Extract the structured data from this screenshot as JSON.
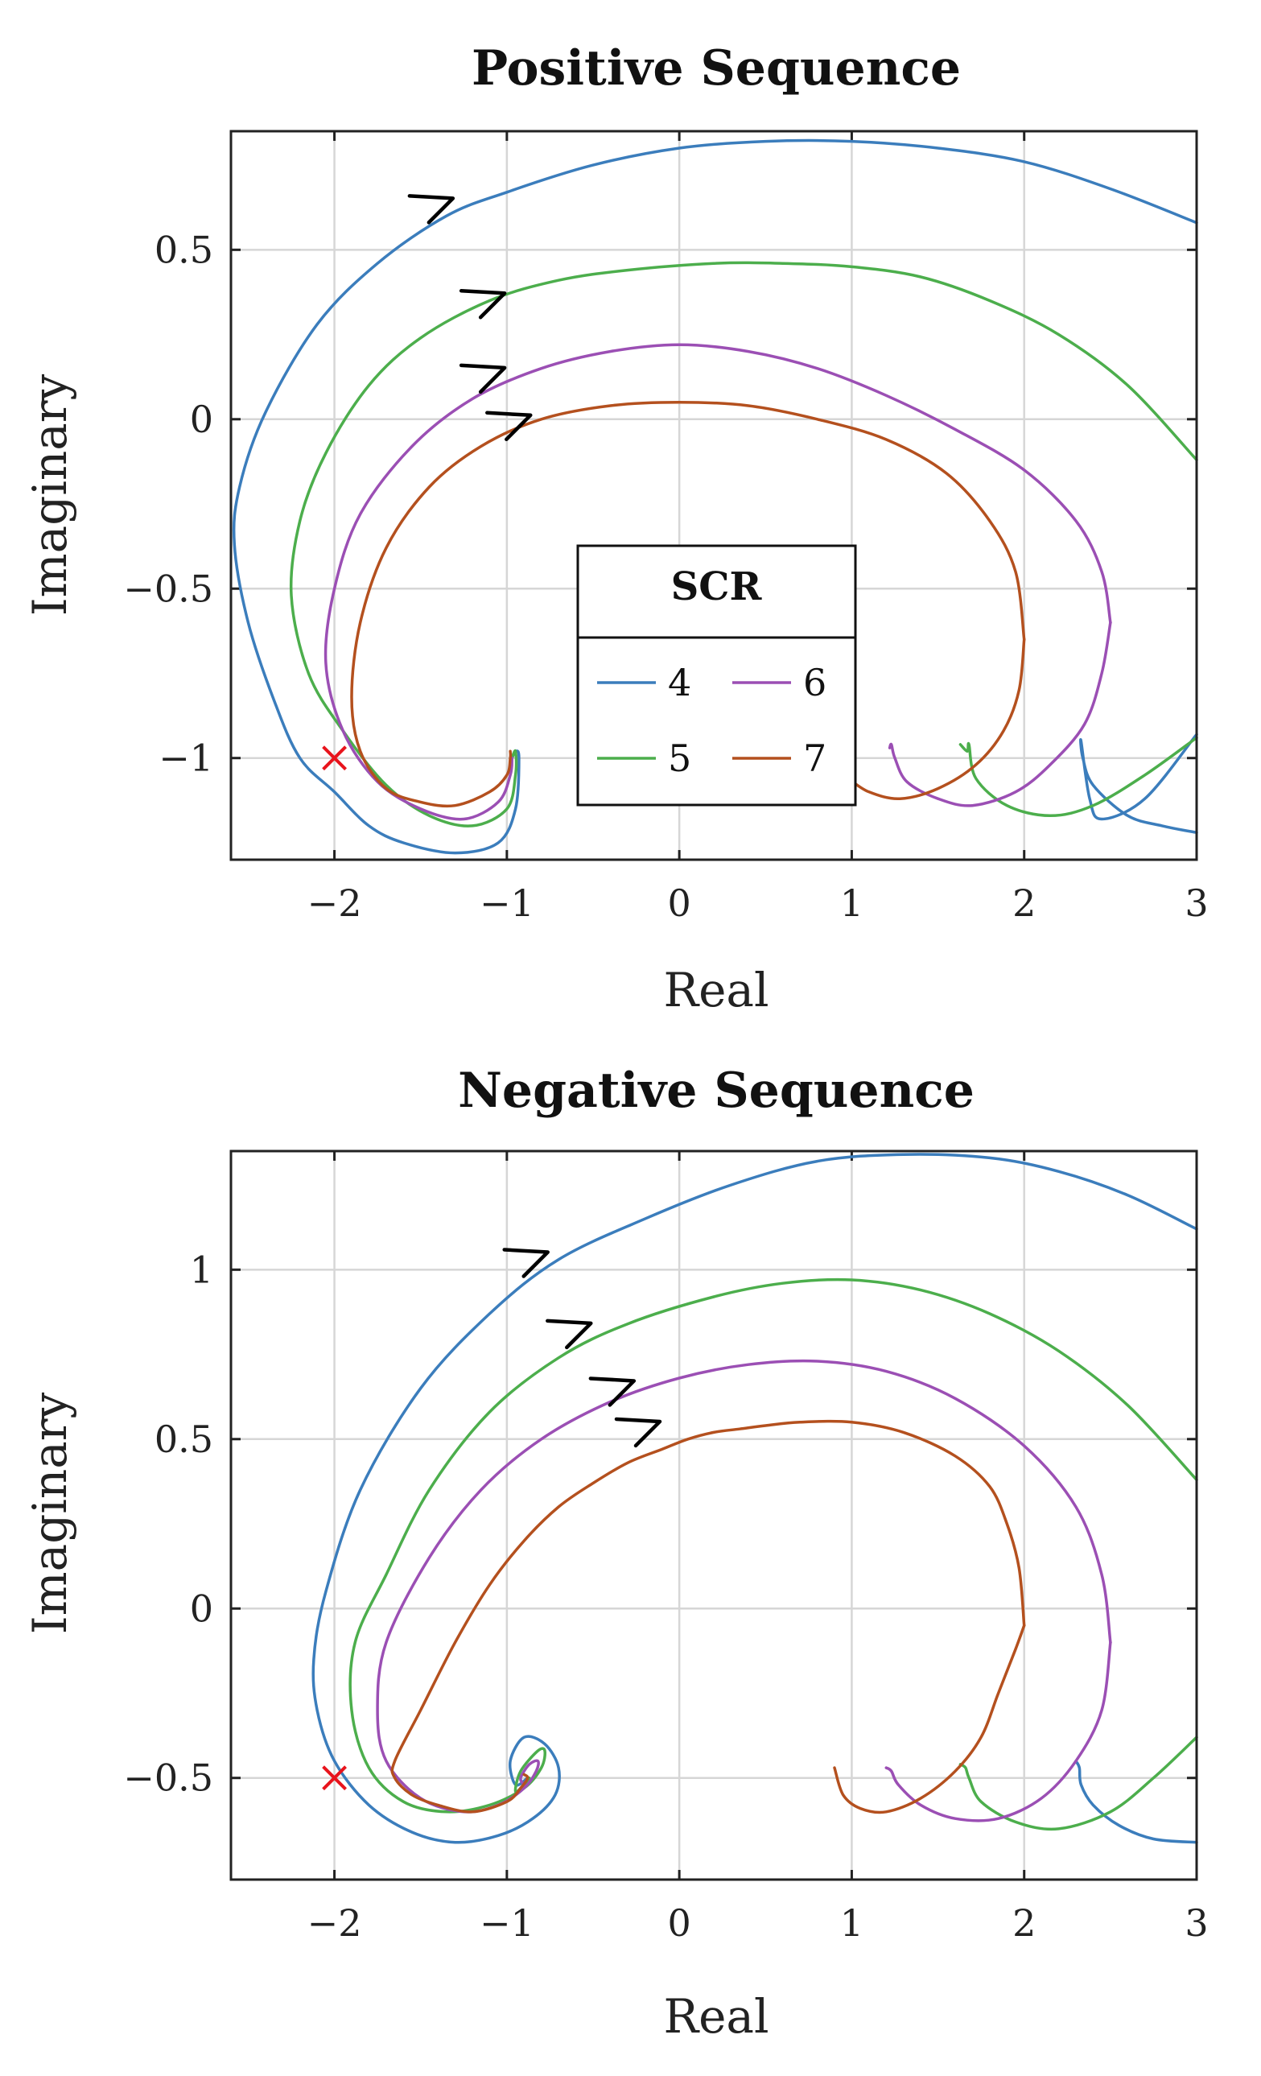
{
  "chart_data": [
    {
      "type": "line",
      "title": "Positive Sequence",
      "xlabel": "Real",
      "ylabel": "Imaginary",
      "xlim": [
        -2.6,
        3
      ],
      "ylim": [
        -1.3,
        0.85
      ],
      "xticks": [
        -2,
        -1,
        0,
        1,
        2,
        3
      ],
      "xtick_labels": [
        "−2",
        "−1",
        "0",
        "1",
        "2",
        "3"
      ],
      "yticks": [
        0.5,
        0,
        -0.5,
        -1
      ],
      "ytick_labels": [
        "0.5",
        "0",
        "−0.5",
        "−1"
      ],
      "grid": true,
      "legend": {
        "title": "SCR",
        "position": "center",
        "columns": 2,
        "entries": [
          "4",
          "6",
          "5",
          "7"
        ]
      },
      "critical_point": {
        "x": -2,
        "y": -1,
        "marker": "x",
        "color": "#e8141c"
      },
      "series": [
        {
          "name": "4",
          "color": "#3b7dbc",
          "x": [
            3.0,
            2.7,
            2.45,
            2.38,
            2.33,
            2.34,
            2.4,
            2.6,
            2.8,
            3.0
          ],
          "y": [
            -0.93,
            -1.12,
            -1.18,
            -1.12,
            -0.95,
            -1.0,
            -1.08,
            -1.17,
            -1.2,
            -1.22
          ],
          "x_main": [
            3.0,
            2.5,
            2.0,
            1.5,
            1.0,
            0.5,
            0.0,
            -0.5,
            -1.0,
            -1.35,
            -1.75,
            -2.1,
            -2.4,
            -2.55,
            -2.58,
            -2.5,
            -2.35,
            -2.2,
            -2.0,
            -1.8,
            -1.6,
            -1.3,
            -1.05,
            -0.95,
            -0.93,
            -0.95,
            -0.97
          ],
          "y_main": [
            0.58,
            0.68,
            0.76,
            0.8,
            0.82,
            0.82,
            0.8,
            0.75,
            0.67,
            0.6,
            0.46,
            0.28,
            0.02,
            -0.2,
            -0.37,
            -0.6,
            -0.83,
            -1.0,
            -1.1,
            -1.2,
            -1.25,
            -1.28,
            -1.25,
            -1.15,
            -1.0,
            -0.98,
            -1.0
          ],
          "arrow_at": {
            "x": -1.35,
            "y": 0.64
          }
        },
        {
          "name": "5",
          "color": "#4cae4c",
          "x": [
            3.0,
            2.7,
            2.4,
            2.15,
            1.9,
            1.72,
            1.68,
            1.67,
            1.63
          ],
          "y": [
            -0.94,
            -1.05,
            -1.14,
            -1.17,
            -1.14,
            -1.06,
            -0.96,
            -0.98,
            -0.96
          ],
          "x_main": [
            3.0,
            2.6,
            2.2,
            1.8,
            1.4,
            1.0,
            0.6,
            0.2,
            -0.3,
            -0.7,
            -1.1,
            -1.5,
            -1.8,
            -2.05,
            -2.2,
            -2.25,
            -2.15,
            -1.95,
            -1.7,
            -1.45,
            -1.2,
            -1.0,
            -0.95,
            -0.95,
            -0.97
          ],
          "y_main": [
            -0.12,
            0.1,
            0.25,
            0.35,
            0.42,
            0.45,
            0.46,
            0.46,
            0.44,
            0.41,
            0.35,
            0.24,
            0.1,
            -0.1,
            -0.3,
            -0.52,
            -0.75,
            -0.92,
            -1.08,
            -1.17,
            -1.2,
            -1.15,
            -1.05,
            -0.98,
            -1.0
          ],
          "arrow_at": {
            "x": -1.05,
            "y": 0.36
          }
        },
        {
          "name": "6",
          "color": "#9b4fb4",
          "x": [
            2.5,
            2.45,
            2.35,
            2.15,
            1.95,
            1.7,
            1.5,
            1.32,
            1.25,
            1.23,
            1.22
          ],
          "y": [
            -0.6,
            -0.75,
            -0.9,
            -1.02,
            -1.1,
            -1.14,
            -1.12,
            -1.07,
            -1.0,
            -0.96,
            -0.97
          ],
          "x_main": [
            2.5,
            2.45,
            2.3,
            2.0,
            1.6,
            1.2,
            0.8,
            0.4,
            0.0,
            -0.4,
            -0.8,
            -1.2,
            -1.55,
            -1.85,
            -2.0,
            -2.05,
            -1.95,
            -1.75,
            -1.5,
            -1.25,
            -1.05,
            -0.98,
            -0.97
          ],
          "y_main": [
            -0.6,
            -0.45,
            -0.3,
            -0.15,
            -0.03,
            0.07,
            0.15,
            0.2,
            0.22,
            0.2,
            0.15,
            0.06,
            -0.08,
            -0.28,
            -0.5,
            -0.72,
            -0.92,
            -1.07,
            -1.15,
            -1.18,
            -1.13,
            -1.05,
            -1.0
          ],
          "arrow_at": {
            "x": -1.05,
            "y": 0.14
          }
        },
        {
          "name": "7",
          "color": "#b4501e",
          "x": [
            2.0,
            1.97,
            1.88,
            1.72,
            1.5,
            1.28,
            1.1,
            0.98
          ],
          "y": [
            -0.65,
            -0.8,
            -0.92,
            -1.02,
            -1.09,
            -1.12,
            -1.1,
            -1.06
          ],
          "x_main": [
            2.0,
            1.95,
            1.8,
            1.55,
            1.2,
            0.8,
            0.4,
            0.0,
            -0.4,
            -0.8,
            -1.15,
            -1.45,
            -1.7,
            -1.85,
            -1.9,
            -1.85,
            -1.7,
            -1.5,
            -1.3,
            -1.1,
            -1.0,
            -0.98,
            -0.98
          ],
          "y_main": [
            -0.65,
            -0.45,
            -0.3,
            -0.16,
            -0.06,
            0.0,
            0.04,
            0.05,
            0.04,
            0.0,
            -0.08,
            -0.2,
            -0.38,
            -0.6,
            -0.82,
            -0.98,
            -1.09,
            -1.13,
            -1.14,
            -1.1,
            -1.05,
            -1.0,
            -0.98
          ],
          "arrow_at": {
            "x": -0.9,
            "y": 0.0
          }
        }
      ]
    },
    {
      "type": "line",
      "title": "Negative Sequence",
      "xlabel": "Real",
      "ylabel": "Imaginary",
      "xlim": [
        -2.6,
        3
      ],
      "ylim": [
        -0.8,
        1.35
      ],
      "xticks": [
        -2,
        -1,
        0,
        1,
        2,
        3
      ],
      "xtick_labels": [
        "−2",
        "−1",
        "0",
        "1",
        "2",
        "3"
      ],
      "yticks": [
        1,
        0.5,
        0,
        -0.5
      ],
      "ytick_labels": [
        "1",
        "0.5",
        "0",
        "−0.5"
      ],
      "grid": true,
      "critical_point": {
        "x": -2,
        "y": -0.5,
        "marker": "x",
        "color": "#e8141c"
      },
      "series": [
        {
          "name": "4",
          "color": "#3b7dbc",
          "x": [
            3.0,
            2.75,
            2.55,
            2.4,
            2.33,
            2.32,
            2.3
          ],
          "y": [
            -0.69,
            -0.68,
            -0.64,
            -0.58,
            -0.52,
            -0.47,
            -0.45
          ],
          "x_main": [
            3.0,
            2.6,
            2.2,
            1.8,
            1.3,
            0.8,
            0.3,
            -0.2,
            -0.7,
            -1.1,
            -1.5,
            -1.85,
            -2.05,
            -2.12,
            -2.1,
            -2.0,
            -1.8,
            -1.55,
            -1.3,
            -1.05,
            -0.85,
            -0.72,
            -0.7,
            -0.78,
            -0.9,
            -0.98,
            -0.95,
            -0.88
          ],
          "y_main": [
            1.12,
            1.22,
            1.29,
            1.33,
            1.34,
            1.32,
            1.25,
            1.15,
            1.03,
            0.87,
            0.65,
            0.35,
            0.05,
            -0.15,
            -0.3,
            -0.45,
            -0.58,
            -0.66,
            -0.69,
            -0.67,
            -0.62,
            -0.55,
            -0.47,
            -0.4,
            -0.38,
            -0.45,
            -0.52,
            -0.5
          ],
          "arrow_at": {
            "x": -0.8,
            "y": 1.04
          }
        },
        {
          "name": "5",
          "color": "#4cae4c",
          "x": [
            3.0,
            2.75,
            2.5,
            2.2,
            1.95,
            1.75,
            1.68,
            1.66,
            1.63
          ],
          "y": [
            -0.38,
            -0.5,
            -0.6,
            -0.65,
            -0.63,
            -0.57,
            -0.5,
            -0.47,
            -0.46
          ],
          "x_main": [
            3.0,
            2.6,
            2.2,
            1.8,
            1.4,
            1.0,
            0.6,
            0.2,
            -0.3,
            -0.7,
            -1.1,
            -1.45,
            -1.7,
            -1.88,
            -1.9,
            -1.8,
            -1.6,
            -1.35,
            -1.1,
            -0.9,
            -0.8,
            -0.78,
            -0.82,
            -0.92,
            -0.95,
            -0.9,
            -0.87
          ],
          "y_main": [
            0.38,
            0.6,
            0.76,
            0.87,
            0.94,
            0.97,
            0.96,
            0.92,
            0.84,
            0.74,
            0.58,
            0.35,
            0.1,
            -0.1,
            -0.3,
            -0.47,
            -0.57,
            -0.6,
            -0.58,
            -0.53,
            -0.47,
            -0.42,
            -0.42,
            -0.48,
            -0.54,
            -0.52,
            -0.5
          ],
          "arrow_at": {
            "x": -0.55,
            "y": 0.83
          }
        },
        {
          "name": "6",
          "color": "#9b4fb4",
          "x": [
            2.5,
            2.45,
            2.3,
            2.1,
            1.85,
            1.6,
            1.4,
            1.27,
            1.23,
            1.2
          ],
          "y": [
            -0.1,
            -0.3,
            -0.45,
            -0.56,
            -0.62,
            -0.62,
            -0.58,
            -0.52,
            -0.48,
            -0.47
          ],
          "x_main": [
            2.5,
            2.45,
            2.3,
            2.0,
            1.6,
            1.2,
            0.8,
            0.4,
            0.0,
            -0.4,
            -0.8,
            -1.15,
            -1.45,
            -1.7,
            -1.75,
            -1.7,
            -1.5,
            -1.25,
            -1.05,
            -0.9,
            -0.83,
            -0.82,
            -0.87,
            -0.92,
            -0.9
          ],
          "y_main": [
            -0.1,
            0.1,
            0.3,
            0.48,
            0.62,
            0.7,
            0.73,
            0.72,
            0.68,
            0.61,
            0.5,
            0.35,
            0.15,
            -0.1,
            -0.3,
            -0.45,
            -0.56,
            -0.6,
            -0.58,
            -0.53,
            -0.48,
            -0.45,
            -0.46,
            -0.5,
            -0.52
          ],
          "arrow_at": {
            "x": -0.3,
            "y": 0.66
          }
        },
        {
          "name": "7",
          "color": "#b4501e",
          "x": [
            2.0,
            1.97,
            1.9,
            1.8,
            1.6,
            1.3,
            1.0,
            0.7,
            0.5,
            0.35,
            0.2,
            0.05,
            -0.1,
            -0.3,
            -0.5,
            -0.7,
            -0.9,
            -1.1,
            -1.3,
            -1.5,
            -1.65,
            -1.65,
            -1.55,
            -1.4,
            -1.2,
            -1.0,
            -0.92,
            -0.88,
            -0.9
          ],
          "y": [
            -0.05,
            0.12,
            0.25,
            0.36,
            0.45,
            0.52,
            0.55,
            0.55,
            0.54,
            0.53,
            0.52,
            0.5,
            0.47,
            0.43,
            0.37,
            0.3,
            0.2,
            0.07,
            -0.1,
            -0.3,
            -0.45,
            -0.5,
            -0.55,
            -0.58,
            -0.6,
            -0.57,
            -0.53,
            -0.5,
            -0.49
          ],
          "x_main": [
            0.9,
            0.95,
            1.05,
            1.2,
            1.4,
            1.6,
            1.75,
            1.85,
            1.95,
            2.0
          ],
          "y_main": [
            -0.47,
            -0.55,
            -0.59,
            -0.6,
            -0.56,
            -0.48,
            -0.38,
            -0.25,
            -0.12,
            -0.05
          ],
          "arrow_at": {
            "x": -0.15,
            "y": 0.54
          }
        }
      ]
    }
  ]
}
